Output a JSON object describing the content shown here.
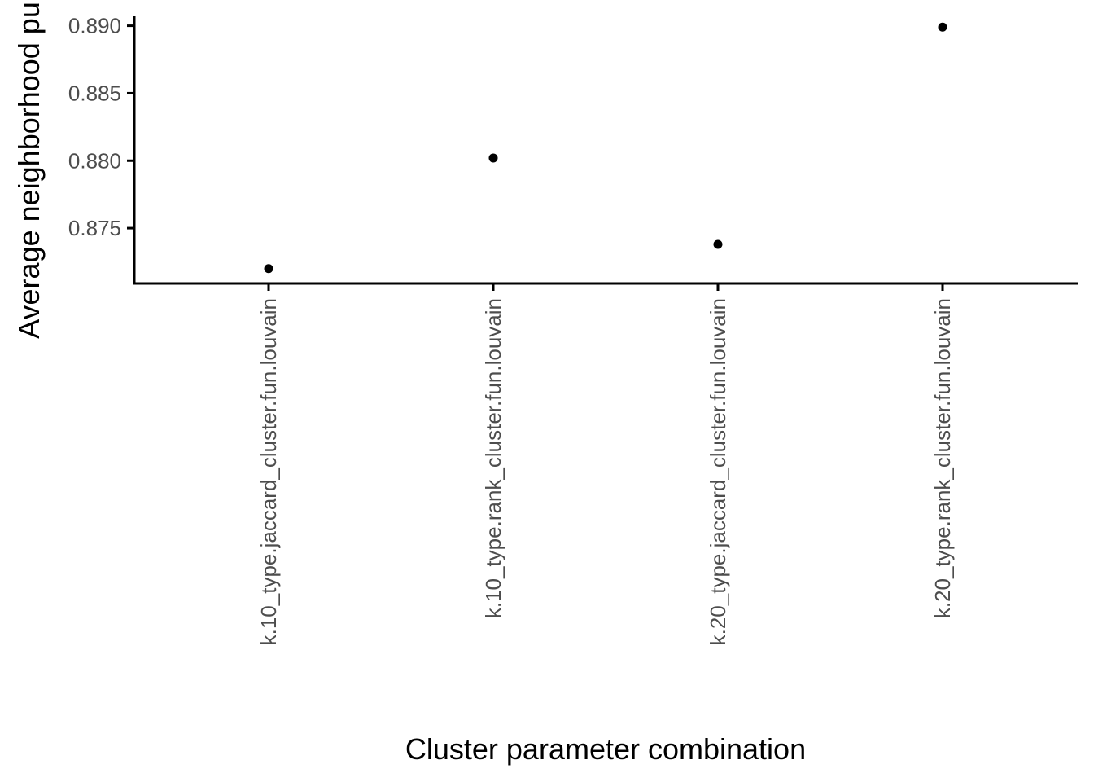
{
  "chart_data": {
    "type": "scatter",
    "title": "",
    "xlabel": "Cluster parameter combination",
    "ylabel": "Average neighborhood purity",
    "categories": [
      "k.10_type.jaccard_cluster.fun.louvain",
      "k.10_type.rank_cluster.fun.louvain",
      "k.20_type.jaccard_cluster.fun.louvain",
      "k.20_type.rank_cluster.fun.louvain"
    ],
    "values": [
      0.872,
      0.8802,
      0.8738,
      0.8899
    ],
    "ylim": [
      0.8709,
      0.8907
    ],
    "yticks": [
      0.875,
      0.88,
      0.885,
      0.89
    ],
    "ytick_labels": [
      "0.875",
      "0.880",
      "0.885",
      "0.890"
    ],
    "grid": false,
    "legend": "none",
    "colors": {
      "point": "#000000",
      "axis": "#000000",
      "tick_text": "#4d4d4d"
    }
  }
}
